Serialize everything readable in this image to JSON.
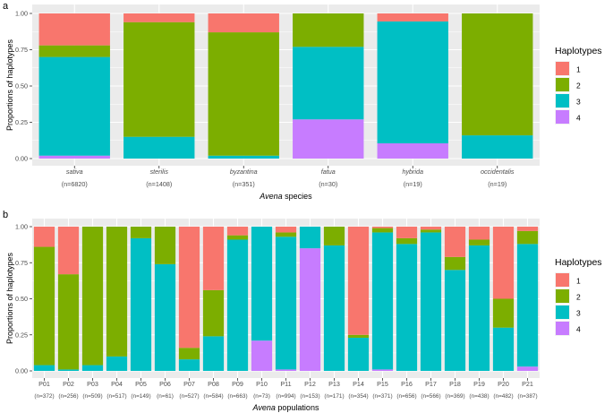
{
  "colors": {
    "panel": "#ebebeb",
    "grid": "#ffffff",
    "h1": "#F8766D",
    "h2": "#7CAE00",
    "h3": "#00BFC4",
    "h4": "#C77CFF"
  },
  "chart_data": [
    {
      "type": "bar",
      "stacked": true,
      "panel_label": "a",
      "ylabel": "Proportions of haplotypes",
      "xlabel_italic": "Avena",
      "xlabel_rest": " species",
      "ylim": [
        0,
        1
      ],
      "yticks": [
        "0.00",
        "0.25",
        "0.50",
        "0.75",
        "1.00"
      ],
      "legend_title": "Haplotypes",
      "legend": [
        "1",
        "2",
        "3",
        "4"
      ],
      "categories": [
        "sativa",
        "sterilis",
        "byzantina",
        "fatua",
        "hybrida",
        "occidentalis"
      ],
      "n_labels": [
        "(n=6820)",
        "(n=1408)",
        "(n=351)",
        "(n=30)",
        "(n=19)",
        "(n=19)"
      ],
      "series": [
        {
          "name": "4",
          "values": [
            0.02,
            0.0,
            0.0,
            0.27,
            0.105,
            0.0
          ]
        },
        {
          "name": "3",
          "values": [
            0.68,
            0.15,
            0.02,
            0.5,
            0.84,
            0.16
          ]
        },
        {
          "name": "2",
          "values": [
            0.08,
            0.79,
            0.85,
            0.23,
            0.0,
            0.84
          ]
        },
        {
          "name": "1",
          "values": [
            0.22,
            0.06,
            0.13,
            0.0,
            0.055,
            0.0
          ]
        }
      ]
    },
    {
      "type": "bar",
      "stacked": true,
      "panel_label": "b",
      "ylabel": "Proportions of haplotypes",
      "xlabel_italic": "Avena",
      "xlabel_rest": " populations",
      "ylim": [
        0,
        1
      ],
      "yticks": [
        "0.00",
        "0.25",
        "0.50",
        "0.75",
        "1.00"
      ],
      "legend_title": "Haplotypes",
      "legend": [
        "1",
        "2",
        "3",
        "4"
      ],
      "categories": [
        "P01",
        "P02",
        "P03",
        "P04",
        "P05",
        "P06",
        "P07",
        "P08",
        "P09",
        "P10",
        "P11",
        "P12",
        "P13",
        "P14",
        "P15",
        "P16",
        "P17",
        "P18",
        "P19",
        "P20",
        "P21"
      ],
      "n_labels": [
        "(n=372)",
        "(n=256)",
        "(n=509)",
        "(n=517)",
        "(n=149)",
        "(n=61)",
        "(n=527)",
        "(n=584)",
        "(n=663)",
        "(n=73)",
        "(n=994)",
        "(n=153)",
        "(n=171)",
        "(n=354)",
        "(n=371)",
        "(n=656)",
        "(n=566)",
        "(n=369)",
        "(n=438)",
        "(n=482)",
        "(n=387)"
      ],
      "series": [
        {
          "name": "4",
          "values": [
            0.0,
            0.0,
            0.0,
            0.0,
            0.0,
            0.0,
            0.0,
            0.0,
            0.0,
            0.21,
            0.01,
            0.85,
            0.0,
            0.0,
            0.01,
            0.0,
            0.0,
            0.0,
            0.0,
            0.0,
            0.03
          ]
        },
        {
          "name": "3",
          "values": [
            0.04,
            0.01,
            0.04,
            0.1,
            0.92,
            0.74,
            0.08,
            0.24,
            0.91,
            0.79,
            0.92,
            0.15,
            0.87,
            0.23,
            0.95,
            0.88,
            0.96,
            0.7,
            0.87,
            0.3,
            0.85
          ]
        },
        {
          "name": "2",
          "values": [
            0.82,
            0.66,
            0.96,
            0.9,
            0.08,
            0.26,
            0.08,
            0.32,
            0.03,
            0.0,
            0.03,
            0.0,
            0.13,
            0.02,
            0.03,
            0.04,
            0.02,
            0.09,
            0.04,
            0.2,
            0.09
          ]
        },
        {
          "name": "1",
          "values": [
            0.14,
            0.33,
            0.0,
            0.0,
            0.0,
            0.0,
            0.84,
            0.44,
            0.06,
            0.0,
            0.04,
            0.0,
            0.0,
            0.75,
            0.01,
            0.08,
            0.02,
            0.21,
            0.09,
            0.5,
            0.03
          ]
        }
      ]
    }
  ]
}
